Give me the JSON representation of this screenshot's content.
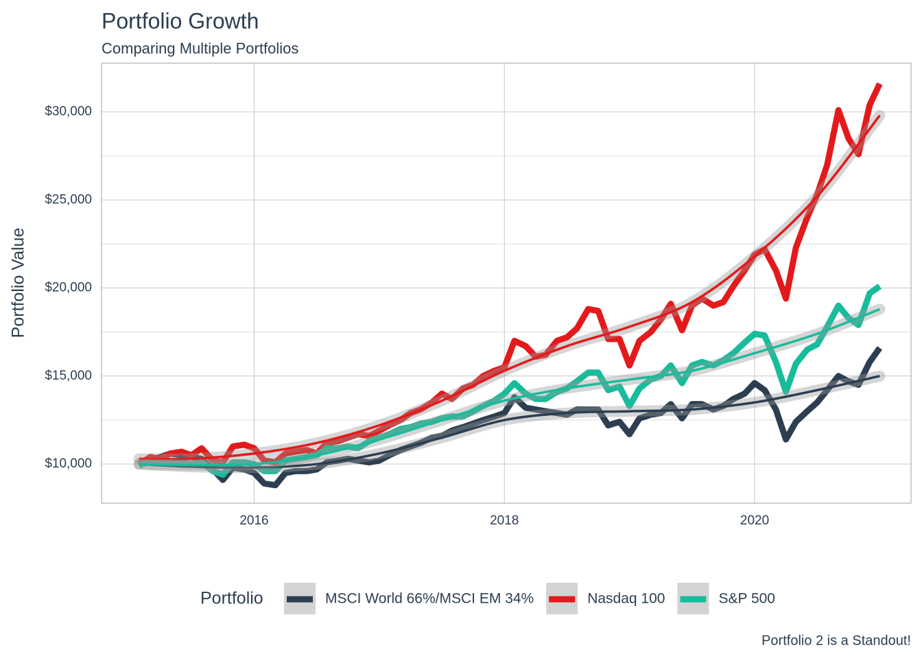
{
  "chart_data": {
    "type": "line",
    "title": "Portfolio Growth",
    "subtitle": "Comparing Multiple Portfolios",
    "y_label": "Portfolio Value",
    "caption": "Portfolio 2 is a Standout!",
    "legend_title": "Portfolio",
    "legend_position": "bottom",
    "grid": true,
    "x": [
      2015.08,
      2015.17,
      2015.25,
      2015.33,
      2015.42,
      2015.5,
      2015.58,
      2015.67,
      2015.75,
      2015.83,
      2015.92,
      2016.0,
      2016.08,
      2016.17,
      2016.25,
      2016.33,
      2016.42,
      2016.5,
      2016.58,
      2016.67,
      2016.75,
      2016.83,
      2016.92,
      2017.0,
      2017.08,
      2017.17,
      2017.25,
      2017.33,
      2017.42,
      2017.5,
      2017.58,
      2017.67,
      2017.75,
      2017.83,
      2017.92,
      2018.0,
      2018.08,
      2018.17,
      2018.25,
      2018.33,
      2018.42,
      2018.5,
      2018.58,
      2018.67,
      2018.75,
      2018.83,
      2018.92,
      2019.0,
      2019.08,
      2019.17,
      2019.25,
      2019.33,
      2019.42,
      2019.5,
      2019.58,
      2019.67,
      2019.75,
      2019.83,
      2019.92,
      2020.0,
      2020.08,
      2020.17,
      2020.25,
      2020.33,
      2020.42,
      2020.5,
      2020.58,
      2020.67,
      2020.75,
      2020.83,
      2020.92,
      2021.0
    ],
    "trend_x": [
      2015.08,
      2015.5,
      2016,
      2016.5,
      2017,
      2017.5,
      2018,
      2018.5,
      2019,
      2019.5,
      2020,
      2020.5,
      2021
    ],
    "series": [
      {
        "name": "MSCI World 66%/MSCI EM 34%",
        "color": "#2c3e50",
        "values": [
          10000,
          10200,
          10400,
          10600,
          10500,
          10400,
          10300,
          9700,
          9100,
          9800,
          9700,
          9500,
          8900,
          8800,
          9500,
          9600,
          9600,
          9700,
          10100,
          10200,
          10300,
          10200,
          10100,
          10200,
          10500,
          10800,
          11000,
          11200,
          11500,
          11600,
          11900,
          12100,
          12300,
          12500,
          12700,
          12900,
          13800,
          13200,
          13100,
          13000,
          12900,
          12800,
          13100,
          13100,
          13100,
          12200,
          12400,
          11700,
          12600,
          12800,
          12900,
          13400,
          12600,
          13400,
          13400,
          13100,
          13300,
          13700,
          14000,
          14600,
          14200,
          13100,
          11400,
          12400,
          13000,
          13500,
          14200,
          15000,
          14700,
          14500,
          15800,
          16600
        ],
        "trend": [
          10000,
          9850,
          9800,
          10000,
          10600,
          11500,
          12500,
          12900,
          13000,
          13100,
          13500,
          14200,
          15000
        ]
      },
      {
        "name": "Nasdaq 100",
        "color": "#e31a1c",
        "values": [
          10000,
          10400,
          10300,
          10600,
          10700,
          10500,
          10900,
          10200,
          10100,
          11000,
          11100,
          10900,
          10200,
          10100,
          10600,
          10700,
          10800,
          10600,
          11200,
          11300,
          11500,
          11700,
          11600,
          11900,
          12200,
          12500,
          12900,
          13100,
          13500,
          14000,
          13700,
          14300,
          14500,
          15000,
          15300,
          15500,
          17000,
          16700,
          16100,
          16200,
          17000,
          17200,
          17700,
          18800,
          18700,
          17100,
          17100,
          15600,
          17000,
          17500,
          18200,
          19100,
          17600,
          19000,
          19400,
          19000,
          19200,
          20100,
          21000,
          21900,
          22200,
          21000,
          19400,
          22300,
          24000,
          25300,
          27000,
          30100,
          28500,
          27600,
          30400,
          31600
        ],
        "trend": [
          10300,
          10300,
          10600,
          11200,
          12200,
          13600,
          15300,
          16700,
          17800,
          19200,
          21800,
          25200,
          29800
        ]
      },
      {
        "name": "S&P 500",
        "color": "#18bc9c",
        "values": [
          9900,
          10200,
          10100,
          10100,
          10100,
          10000,
          10100,
          9600,
          9400,
          10100,
          10100,
          10000,
          9600,
          9600,
          10200,
          10300,
          10400,
          10500,
          10900,
          10900,
          11000,
          10900,
          11300,
          11500,
          11700,
          12000,
          12100,
          12300,
          12400,
          12600,
          12700,
          12700,
          13000,
          13300,
          13600,
          14000,
          14600,
          14000,
          13700,
          13700,
          14100,
          14300,
          14700,
          15200,
          15200,
          14200,
          14400,
          13300,
          14300,
          14800,
          15000,
          15600,
          14600,
          15600,
          15800,
          15600,
          15900,
          16300,
          16900,
          17400,
          17300,
          15800,
          14100,
          15700,
          16500,
          16800,
          17800,
          19000,
          18300,
          17900,
          19700,
          20100
        ],
        "trend": [
          10000,
          9950,
          10000,
          10500,
          11400,
          12500,
          13600,
          14300,
          14800,
          15300,
          16300,
          17400,
          18800
        ]
      }
    ],
    "xlim": [
      2014.78,
      2021.25
    ],
    "xticks": [
      2016,
      2018,
      2020
    ],
    "ylim": [
      7780,
      32770
    ],
    "yticks": [
      {
        "value": 10000,
        "label": "$10,000"
      },
      {
        "value": 15000,
        "label": "$15,000"
      },
      {
        "value": 20000,
        "label": "$20,000"
      },
      {
        "value": 25000,
        "label": "$25,000"
      },
      {
        "value": 30000,
        "label": "$30,000"
      }
    ],
    "minor_yticks": [
      12500,
      17500,
      22500,
      27500
    ]
  }
}
